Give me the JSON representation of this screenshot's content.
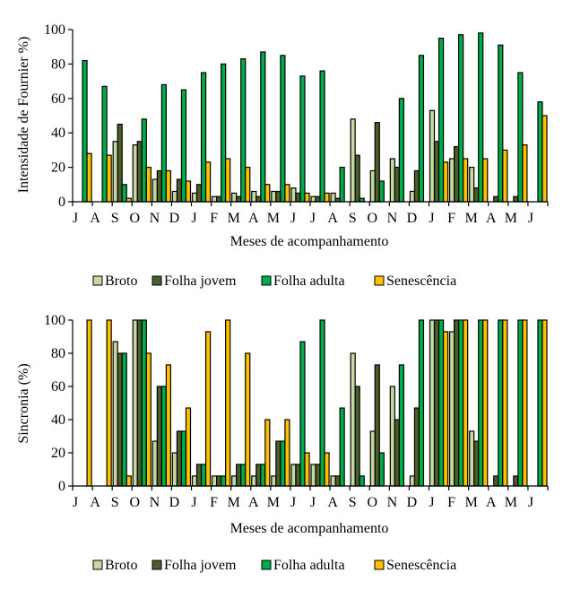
{
  "colors": {
    "Broto": "#c5d89f",
    "Folha jovem": "#4b5e2a",
    "Folha adulta": "#00ac4a",
    "Senescência": "#ffc000"
  },
  "chart_data": [
    {
      "type": "bar",
      "title": "",
      "xlabel": "Meses de acompanhamento",
      "ylabel": "Intensidade de Fournier %)",
      "ylim": [
        0,
        100
      ],
      "yticks": [
        0,
        20,
        40,
        60,
        80,
        100
      ],
      "grid": false,
      "legend_position": "bottom",
      "categories": [
        "J",
        "A",
        "S",
        "O",
        "N",
        "D",
        "J",
        "F",
        "M",
        "A",
        "M",
        "J",
        "J",
        "A",
        "S",
        "O",
        "N",
        "D",
        "J",
        "F",
        "M",
        "A",
        "M",
        "J"
      ],
      "series": [
        {
          "name": "Broto",
          "values": [
            0,
            0,
            35,
            33,
            13,
            6,
            5,
            3,
            5,
            6,
            6,
            8,
            3,
            5,
            48,
            18,
            25,
            6,
            53,
            25,
            20,
            0,
            0,
            0
          ]
        },
        {
          "name": "Folha jovem",
          "values": [
            0,
            0,
            45,
            35,
            18,
            13,
            10,
            3,
            3,
            3,
            6,
            5,
            3,
            2,
            27,
            46,
            20,
            18,
            35,
            32,
            8,
            3,
            3,
            0
          ]
        },
        {
          "name": "Folha adulta",
          "values": [
            82,
            67,
            10,
            48,
            68,
            65,
            75,
            80,
            83,
            87,
            85,
            73,
            76,
            20,
            2,
            12,
            60,
            85,
            95,
            97,
            98,
            91,
            75,
            58
          ]
        },
        {
          "name": "Senescência",
          "values": [
            28,
            27,
            2,
            20,
            18,
            12,
            23,
            25,
            20,
            10,
            10,
            5,
            5,
            0,
            0,
            0,
            0,
            0,
            23,
            25,
            25,
            30,
            33,
            50
          ]
        }
      ]
    },
    {
      "type": "bar",
      "title": "",
      "xlabel": "Meses de acompanhamento",
      "ylabel": "Sincronia (%)",
      "ylim": [
        0,
        100
      ],
      "yticks": [
        0,
        20,
        40,
        60,
        80,
        100
      ],
      "grid": false,
      "legend_position": "bottom",
      "categories": [
        "J",
        "A",
        "S",
        "O",
        "N",
        "D",
        "J",
        "F",
        "M",
        "A",
        "M",
        "J",
        "J",
        "A",
        "S",
        "O",
        "N",
        "D",
        "J",
        "F",
        "M",
        "A",
        "M",
        "J"
      ],
      "series": [
        {
          "name": "Broto",
          "values": [
            0,
            0,
            87,
            100,
            27,
            20,
            6,
            6,
            6,
            6,
            6,
            13,
            13,
            6,
            80,
            33,
            60,
            6,
            100,
            93,
            33,
            0,
            0,
            0
          ]
        },
        {
          "name": "Folha jovem",
          "values": [
            0,
            0,
            80,
            100,
            60,
            33,
            13,
            6,
            13,
            13,
            27,
            13,
            13,
            6,
            60,
            73,
            40,
            47,
            100,
            100,
            27,
            6,
            6,
            0
          ]
        },
        {
          "name": "Folha adulta",
          "values": [
            0,
            0,
            80,
            100,
            60,
            33,
            13,
            6,
            13,
            13,
            27,
            87,
            100,
            47,
            6,
            20,
            73,
            100,
            100,
            100,
            100,
            100,
            100,
            100
          ]
        },
        {
          "name": "Senescência",
          "values": [
            100,
            100,
            6,
            80,
            73,
            47,
            93,
            100,
            80,
            40,
            40,
            20,
            20,
            0,
            0,
            0,
            0,
            0,
            93,
            100,
            100,
            100,
            100,
            100
          ]
        }
      ]
    }
  ]
}
